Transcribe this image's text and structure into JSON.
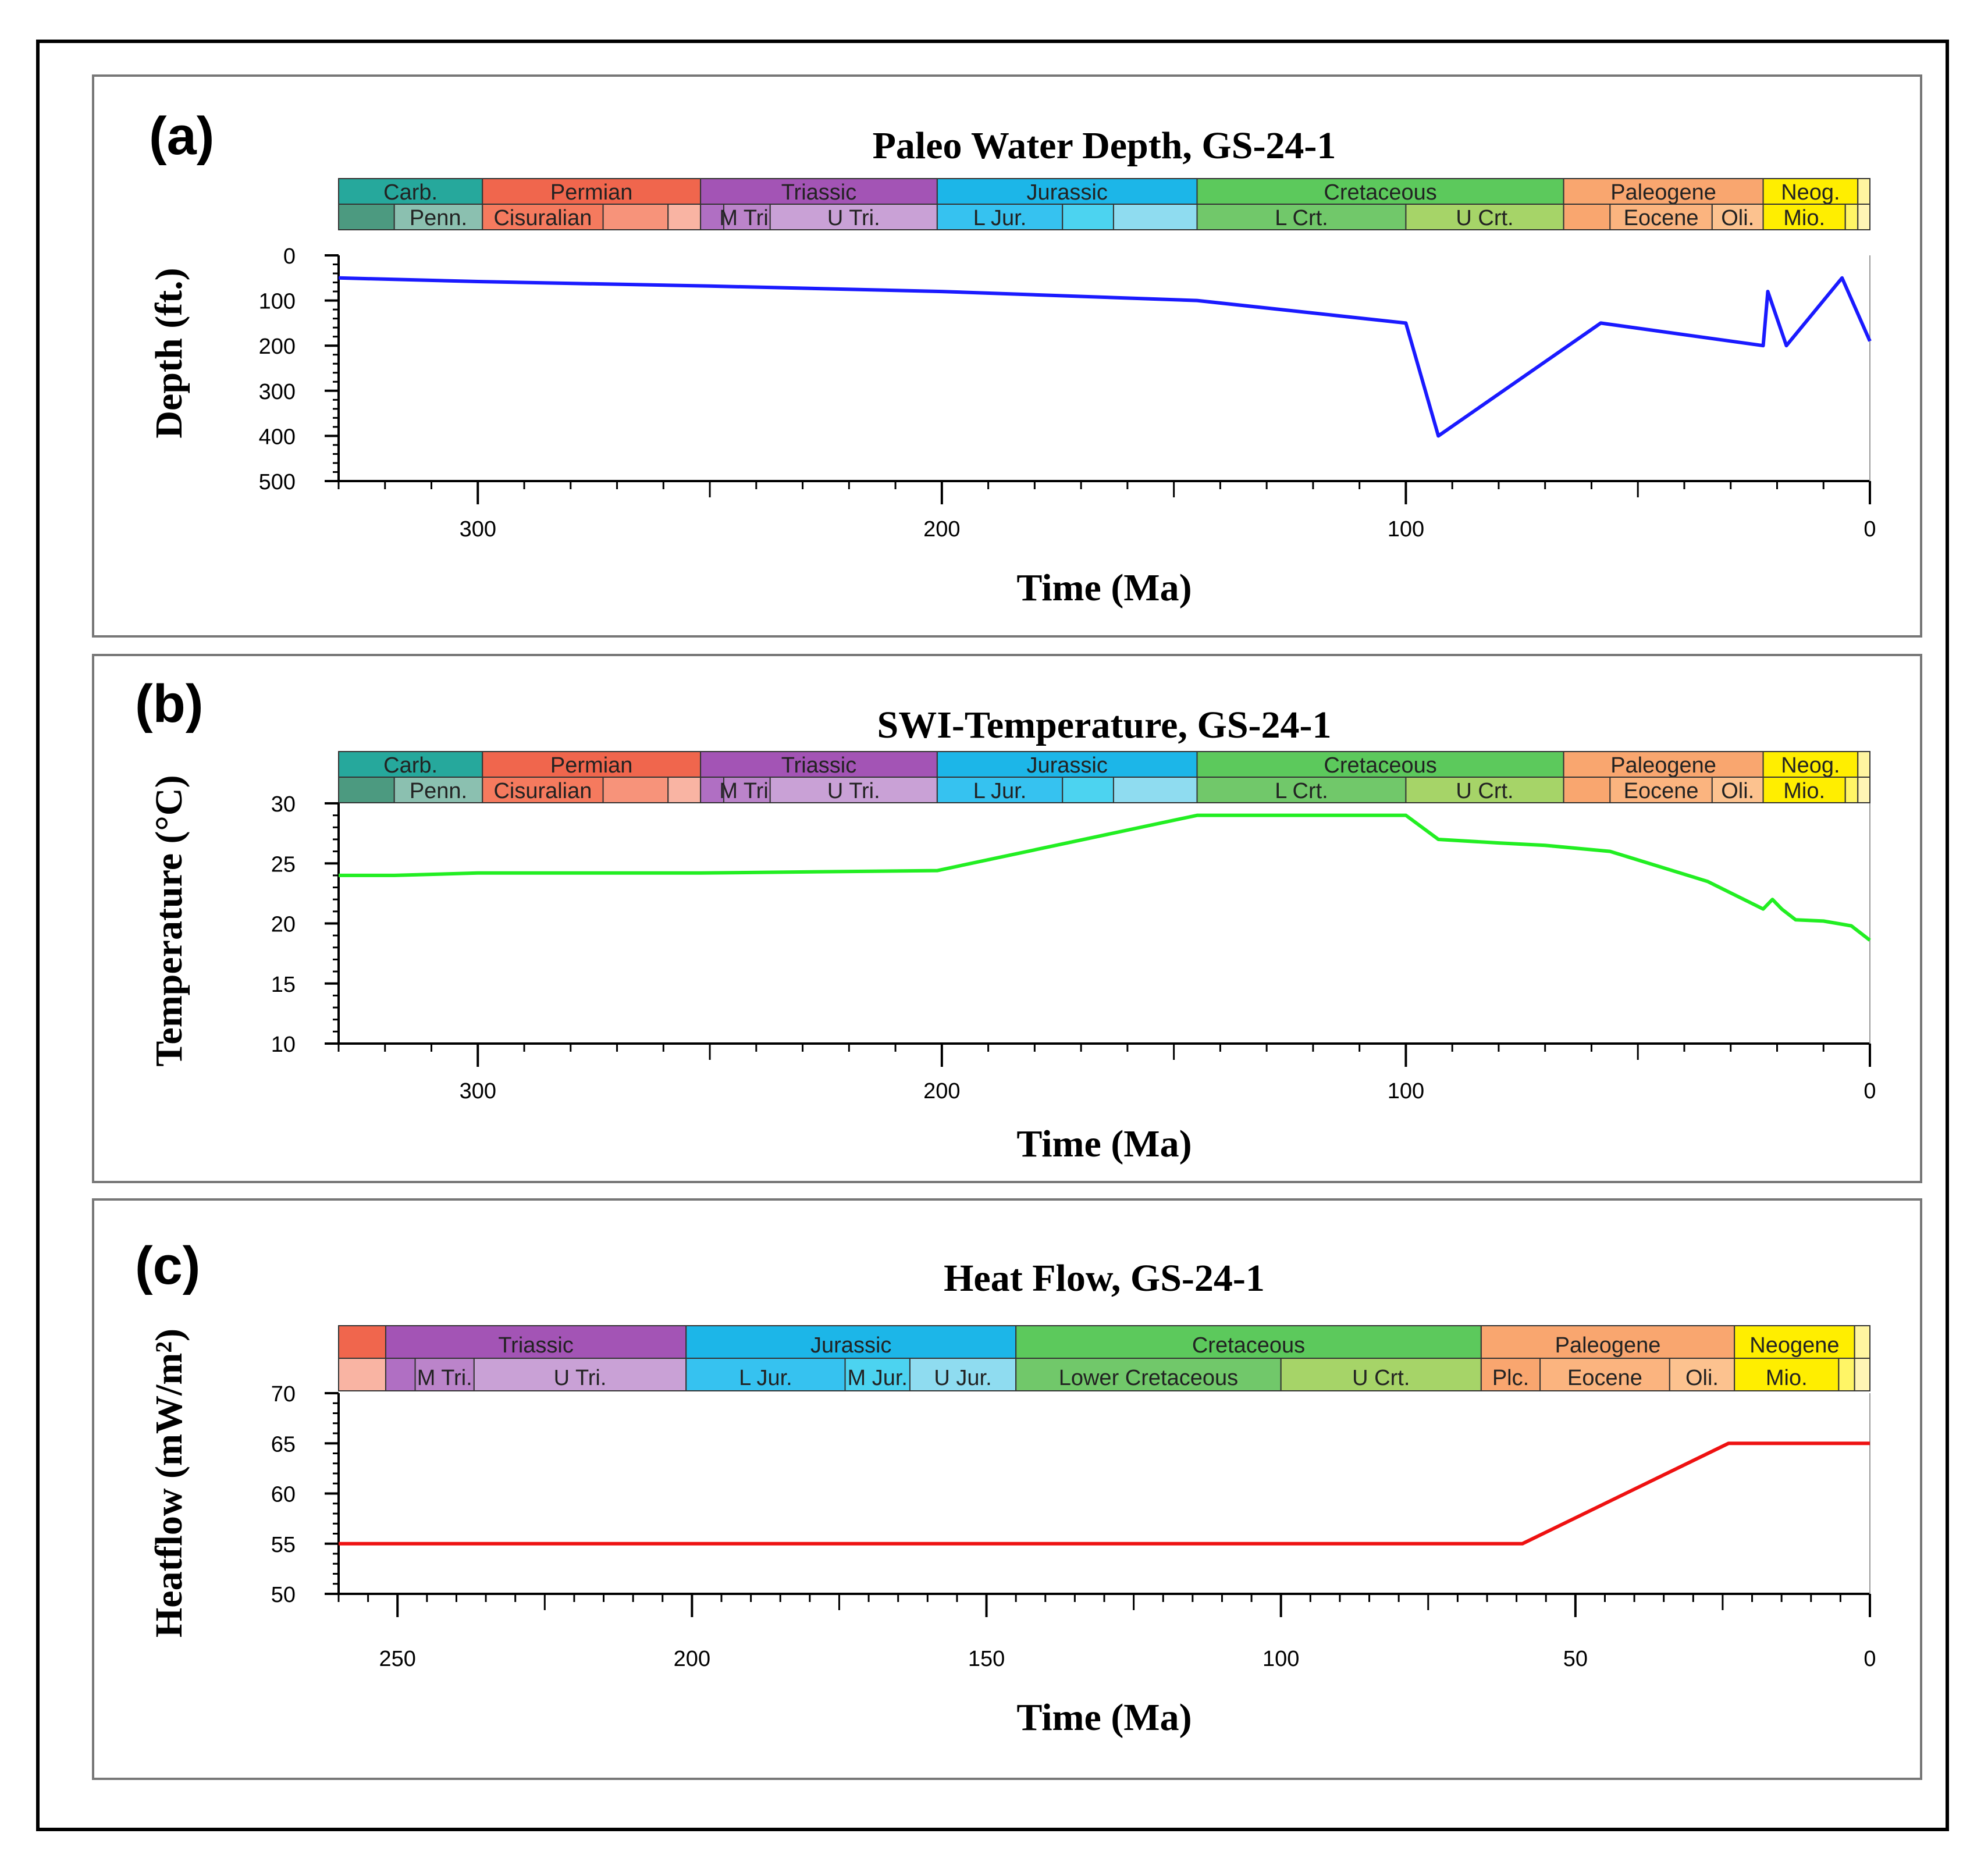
{
  "chart_data": [
    {
      "panel": "(a)",
      "type": "line",
      "title": "Paleo Water Depth, GS-24-1",
      "xlabel": "Time (Ma)",
      "ylabel": "Depth (ft.)",
      "xlim": [
        330,
        0
      ],
      "ylim": [
        0,
        500
      ],
      "y_inverted": true,
      "xticks": [
        300,
        200,
        100,
        0
      ],
      "yticks": [
        0,
        100,
        200,
        300,
        400,
        500
      ],
      "series": [
        {
          "color": "#1a1aff",
          "x": [
            330,
            300,
            250,
            200,
            145,
            100,
            93,
            58,
            23,
            22,
            18,
            6,
            0
          ],
          "y": [
            50,
            58,
            68,
            80,
            100,
            150,
            400,
            150,
            200,
            80,
            200,
            50,
            190
          ]
        }
      ],
      "timescale": [
        [
          {
            "label": "Carb.",
            "from": 330,
            "to": 299,
            "color": "#26a89c"
          },
          {
            "label": "Permian",
            "from": 299,
            "to": 252,
            "color": "#f0664d"
          },
          {
            "label": "Triassic",
            "from": 252,
            "to": 201,
            "color": "#a354b5"
          },
          {
            "label": "Jurassic",
            "from": 201,
            "to": 145,
            "color": "#1cb6e8"
          },
          {
            "label": "Cretaceous",
            "from": 145,
            "to": 66,
            "color": "#5cc95c"
          },
          {
            "label": "Paleogene",
            "from": 66,
            "to": 23,
            "color": "#f9a66f"
          },
          {
            "label": "Neog.",
            "from": 23,
            "to": 2.6,
            "color": "#ffee00"
          },
          {
            "label": "",
            "from": 2.6,
            "to": 0,
            "color": "#fff5a0"
          }
        ],
        [
          {
            "label": "",
            "from": 330,
            "to": 318,
            "color": "#4c9a80"
          },
          {
            "label": "Penn.",
            "from": 318,
            "to": 299,
            "color": "#8bc0b0"
          },
          {
            "label": "Cisuralian",
            "from": 299,
            "to": 273,
            "color": "#f57a5e"
          },
          {
            "label": "",
            "from": 273,
            "to": 259,
            "color": "#f7937a"
          },
          {
            "label": "",
            "from": 259,
            "to": 252,
            "color": "#f9b4a3"
          },
          {
            "label": "",
            "from": 252,
            "to": 247,
            "color": "#b06fc3"
          },
          {
            "label": "M Tri.",
            "from": 247,
            "to": 237,
            "color": "#bb84ca"
          },
          {
            "label": "U Tri.",
            "from": 237,
            "to": 201,
            "color": "#c9a1d6"
          },
          {
            "label": "L Jur.",
            "from": 201,
            "to": 174,
            "color": "#36c2f0"
          },
          {
            "label": "",
            "from": 174,
            "to": 163,
            "color": "#4cd3f0"
          },
          {
            "label": "",
            "from": 163,
            "to": 145,
            "color": "#8fdcf0"
          },
          {
            "label": "L Crt.",
            "from": 145,
            "to": 100,
            "color": "#71c86a"
          },
          {
            "label": "U Crt.",
            "from": 100,
            "to": 66,
            "color": "#a6d468"
          },
          {
            "label": "",
            "from": 66,
            "to": 56,
            "color": "#f9a66f"
          },
          {
            "label": "Eocene",
            "from": 56,
            "to": 34,
            "color": "#fbb47f"
          },
          {
            "label": "Oli.",
            "from": 34,
            "to": 23,
            "color": "#fcc28f"
          },
          {
            "label": "Mio.",
            "from": 23,
            "to": 5.3,
            "color": "#ffee00"
          },
          {
            "label": "",
            "from": 5.3,
            "to": 2.6,
            "color": "#fff566"
          },
          {
            "label": "",
            "from": 2.6,
            "to": 0,
            "color": "#fff5b5"
          }
        ]
      ]
    },
    {
      "panel": "(b)",
      "type": "line",
      "title": "SWI-Temperature, GS-24-1",
      "xlabel": "Time (Ma)",
      "ylabel": "Temperature (°C)",
      "xlim": [
        330,
        0
      ],
      "ylim": [
        10,
        30
      ],
      "xticks": [
        300,
        200,
        100,
        0
      ],
      "yticks": [
        10,
        15,
        20,
        25,
        30
      ],
      "series": [
        {
          "color": "#22ee22",
          "x": [
            330,
            318,
            300,
            252,
            201,
            145,
            100,
            93,
            80,
            70,
            56,
            35,
            23,
            21,
            19,
            16,
            10,
            4,
            0
          ],
          "y": [
            24,
            24,
            24.2,
            24.2,
            24.4,
            29,
            29,
            27,
            26.7,
            26.5,
            26,
            23.5,
            21.2,
            22,
            21.2,
            20.3,
            20.2,
            19.8,
            18.6
          ]
        }
      ],
      "timescale": "same_as_panel_a"
    },
    {
      "panel": "(c)",
      "type": "line",
      "title": "Heat Flow, GS-24-1",
      "xlabel": "Time (Ma)",
      "ylabel": "Heatflow (mW/m²)",
      "xlim": [
        260,
        0
      ],
      "ylim": [
        50,
        70
      ],
      "xticks": [
        250,
        200,
        150,
        100,
        50,
        0
      ],
      "yticks": [
        50,
        55,
        60,
        65,
        70
      ],
      "series": [
        {
          "color": "#ee1111",
          "x": [
            260,
            59,
            24,
            0
          ],
          "y": [
            55,
            55,
            65,
            65
          ]
        }
      ],
      "timescale": [
        [
          {
            "label": "",
            "from": 260,
            "to": 252,
            "color": "#f0664d"
          },
          {
            "label": "Triassic",
            "from": 252,
            "to": 201,
            "color": "#a354b5"
          },
          {
            "label": "Jurassic",
            "from": 201,
            "to": 145,
            "color": "#1cb6e8"
          },
          {
            "label": "Cretaceous",
            "from": 145,
            "to": 66,
            "color": "#5cc95c"
          },
          {
            "label": "Paleogene",
            "from": 66,
            "to": 23,
            "color": "#f9a66f"
          },
          {
            "label": "Neogene",
            "from": 23,
            "to": 2.6,
            "color": "#ffee00"
          },
          {
            "label": "",
            "from": 2.6,
            "to": 0,
            "color": "#fff5a0"
          }
        ],
        [
          {
            "label": "",
            "from": 260,
            "to": 252,
            "color": "#f9b4a3"
          },
          {
            "label": "",
            "from": 252,
            "to": 247,
            "color": "#b06fc3"
          },
          {
            "label": "M Tri.",
            "from": 247,
            "to": 237,
            "color": "#bb84ca"
          },
          {
            "label": "U Tri.",
            "from": 237,
            "to": 201,
            "color": "#c9a1d6"
          },
          {
            "label": "L Jur.",
            "from": 201,
            "to": 174,
            "color": "#36c2f0"
          },
          {
            "label": "M Jur.",
            "from": 174,
            "to": 163,
            "color": "#4cd3f0"
          },
          {
            "label": "U Jur.",
            "from": 163,
            "to": 145,
            "color": "#8fdcf0"
          },
          {
            "label": "Lower Cretaceous",
            "from": 145,
            "to": 100,
            "color": "#71c86a"
          },
          {
            "label": "U Crt.",
            "from": 100,
            "to": 66,
            "color": "#a6d468"
          },
          {
            "label": "Plc.",
            "from": 66,
            "to": 56,
            "color": "#f9a66f"
          },
          {
            "label": "Eocene",
            "from": 56,
            "to": 34,
            "color": "#fbb47f"
          },
          {
            "label": "Oli.",
            "from": 34,
            "to": 23,
            "color": "#fcc28f"
          },
          {
            "label": "Mio.",
            "from": 23,
            "to": 5.3,
            "color": "#ffee00"
          },
          {
            "label": "",
            "from": 5.3,
            "to": 2.6,
            "color": "#fff566"
          },
          {
            "label": "",
            "from": 2.6,
            "to": 0,
            "color": "#fff5b5"
          }
        ]
      ]
    }
  ]
}
